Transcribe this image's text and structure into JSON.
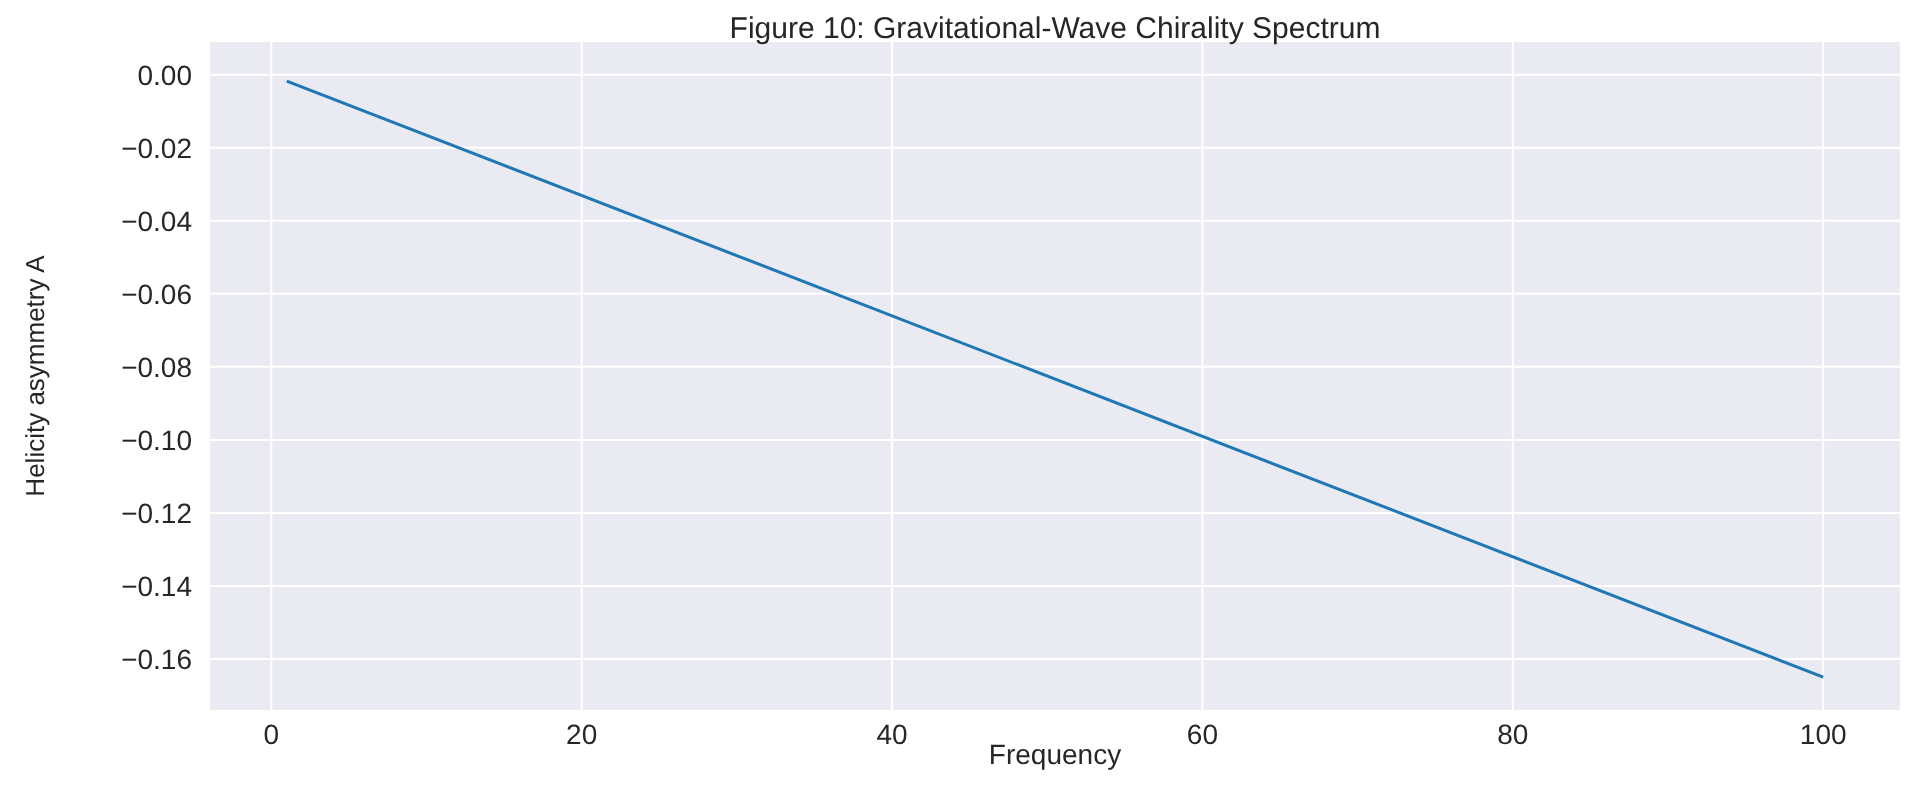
{
  "chart_data": {
    "type": "line",
    "title": "Figure 10: Gravitational-Wave Chirality Spectrum",
    "xlabel": "Frequency",
    "ylabel": "Helicity asymmetry A",
    "x": [
      1,
      100
    ],
    "series": [
      {
        "color": "#1f77b4",
        "values": [
          -0.0017,
          -0.165
        ]
      }
    ],
    "xlim": [
      -3.95,
      104.95
    ],
    "xticks": [
      0,
      20,
      40,
      60,
      80,
      100
    ],
    "ylim": [
      -0.174,
      0.009
    ],
    "yticks": [
      {
        "value": 0,
        "label": "0.00"
      },
      {
        "value": -0.02,
        "label": "−0.02"
      },
      {
        "value": -0.04,
        "label": "−0.04"
      },
      {
        "value": -0.06,
        "label": "−0.06"
      },
      {
        "value": -0.08,
        "label": "−0.08"
      },
      {
        "value": -0.1,
        "label": "−0.10"
      },
      {
        "value": -0.12,
        "label": "−0.12"
      },
      {
        "value": -0.14,
        "label": "−0.14"
      },
      {
        "value": -0.16,
        "label": "−0.16"
      }
    ],
    "grid": true,
    "line_style": "solid"
  }
}
